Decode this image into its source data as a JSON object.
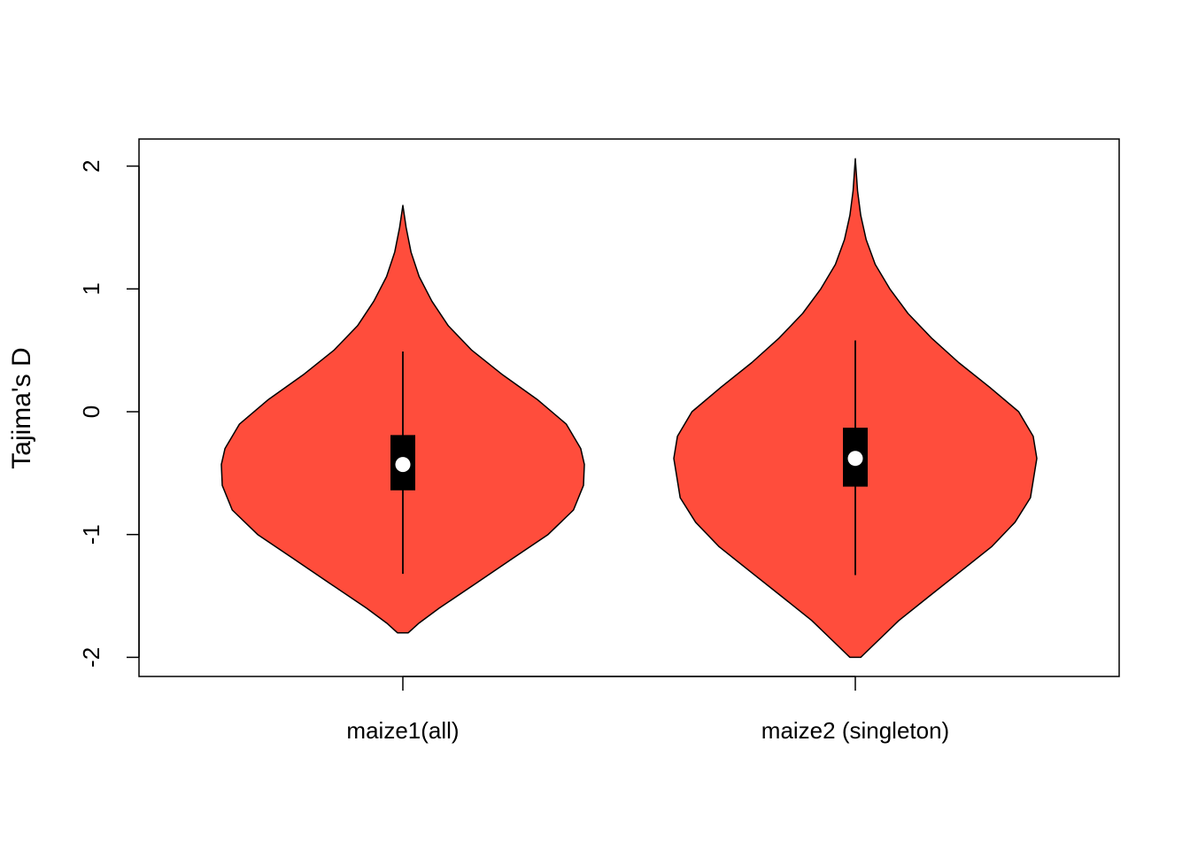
{
  "chart_data": {
    "type": "violin",
    "title": "",
    "xlabel": "",
    "ylabel": "Tajima's D",
    "ylim": [
      -2.15,
      2.22
    ],
    "yticks": [
      -2,
      -1,
      0,
      1,
      2
    ],
    "yticks_labels": [
      "-2",
      "-1",
      "0",
      "1",
      "2"
    ],
    "grid": false,
    "fill_color": "#FF4D3C",
    "box_color": "#000000",
    "median_color": "#ffffff",
    "categories": [
      "maize1(all)",
      "maize2 (singleton)"
    ],
    "series": [
      {
        "category": "maize1(all)",
        "min": -1.8,
        "max": 1.68,
        "whisker_low": -1.32,
        "q1": -0.64,
        "median": -0.43,
        "q3": -0.19,
        "whisker_high": 0.49,
        "density_profile": [
          [
            -1.8,
            0.03
          ],
          [
            -1.72,
            0.09
          ],
          [
            -1.6,
            0.2
          ],
          [
            -1.4,
            0.4
          ],
          [
            -1.2,
            0.6
          ],
          [
            -1.0,
            0.8
          ],
          [
            -0.8,
            0.94
          ],
          [
            -0.6,
            0.995
          ],
          [
            -0.43,
            1.0
          ],
          [
            -0.3,
            0.98
          ],
          [
            -0.1,
            0.9
          ],
          [
            0.1,
            0.74
          ],
          [
            0.3,
            0.55
          ],
          [
            0.5,
            0.38
          ],
          [
            0.7,
            0.25
          ],
          [
            0.9,
            0.16
          ],
          [
            1.1,
            0.09
          ],
          [
            1.3,
            0.045
          ],
          [
            1.5,
            0.018
          ],
          [
            1.68,
            0.0
          ]
        ]
      },
      {
        "category": "maize2 (singleton)",
        "min": -2.0,
        "max": 2.06,
        "whisker_low": -1.33,
        "q1": -0.61,
        "median": -0.38,
        "q3": -0.13,
        "whisker_high": 0.58,
        "density_profile": [
          [
            -2.0,
            0.03
          ],
          [
            -1.9,
            0.1
          ],
          [
            -1.7,
            0.24
          ],
          [
            -1.5,
            0.41
          ],
          [
            -1.3,
            0.58
          ],
          [
            -1.1,
            0.75
          ],
          [
            -0.9,
            0.88
          ],
          [
            -0.7,
            0.965
          ],
          [
            -0.38,
            1.0
          ],
          [
            -0.2,
            0.98
          ],
          [
            0.0,
            0.9
          ],
          [
            0.2,
            0.74
          ],
          [
            0.4,
            0.57
          ],
          [
            0.6,
            0.42
          ],
          [
            0.8,
            0.29
          ],
          [
            1.0,
            0.19
          ],
          [
            1.2,
            0.11
          ],
          [
            1.4,
            0.06
          ],
          [
            1.6,
            0.03
          ],
          [
            1.8,
            0.012
          ],
          [
            2.06,
            0.0
          ]
        ]
      }
    ]
  }
}
